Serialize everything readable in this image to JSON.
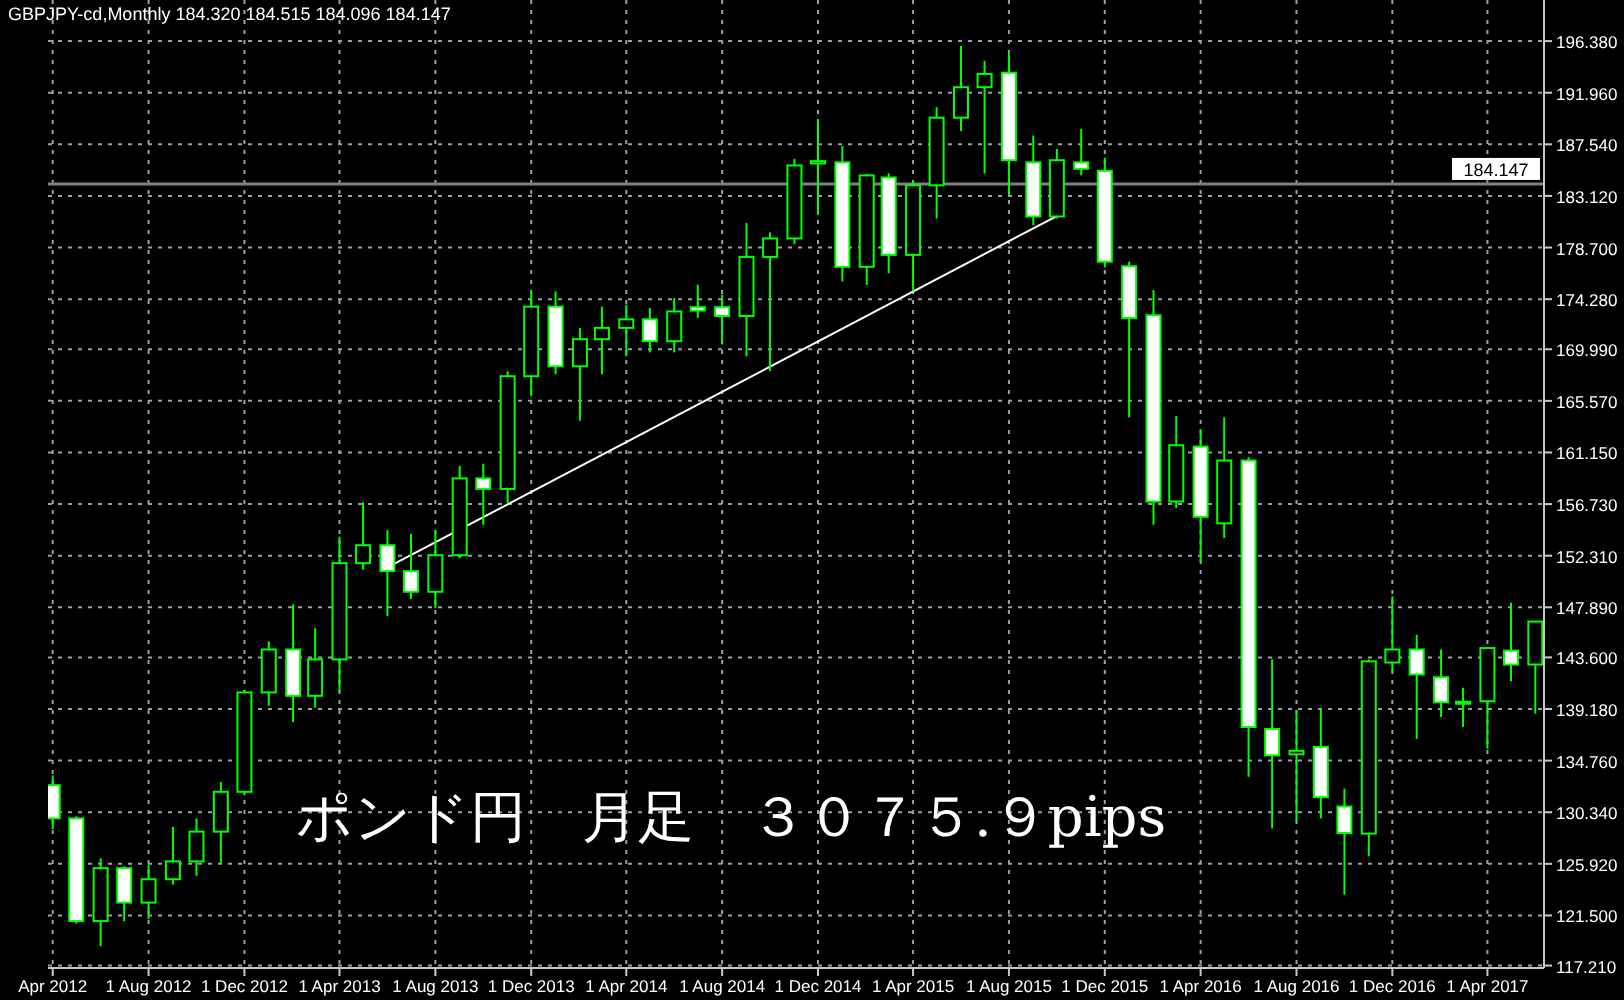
{
  "chart_data": {
    "type": "candlestick",
    "title": "GBPJPY-cd,Monthly 184.320 184.515 184.096 184.147",
    "annotations": [
      "ポンド円　月足　３０７５.９pips"
    ],
    "color": "#00ff00",
    "x": [
      "2012-04",
      "2012-05",
      "2012-06",
      "2012-07",
      "2012-08",
      "2012-09",
      "2012-10",
      "2012-11",
      "2012-12",
      "2013-01",
      "2013-02",
      "2013-03",
      "2013-04",
      "2013-05",
      "2013-06",
      "2013-07",
      "2013-08",
      "2013-09",
      "2013-10",
      "2013-11",
      "2013-12",
      "2014-01",
      "2014-02",
      "2014-03",
      "2014-04",
      "2014-05",
      "2014-06",
      "2014-07",
      "2014-08",
      "2014-09",
      "2014-10",
      "2014-11",
      "2014-12",
      "2015-01",
      "2015-02",
      "2015-03",
      "2015-04",
      "2015-05",
      "2015-06",
      "2015-07",
      "2015-08",
      "2015-09",
      "2015-10",
      "2015-11",
      "2015-12",
      "2016-01",
      "2016-02",
      "2016-03",
      "2016-04",
      "2016-05",
      "2016-06",
      "2016-07",
      "2016-08",
      "2016-09",
      "2016-10",
      "2016-11",
      "2016-12",
      "2017-01",
      "2017-02",
      "2017-03",
      "2017-04",
      "2017-05",
      "2017-06"
    ],
    "ohlc": [
      [
        132.66,
        133.5,
        128.9,
        129.81
      ],
      [
        129.81,
        130.0,
        120.8,
        121.02
      ],
      [
        121.02,
        126.4,
        118.86,
        125.55
      ],
      [
        125.55,
        125.7,
        121.0,
        122.6
      ],
      [
        122.6,
        125.84,
        121.19,
        124.6
      ],
      [
        124.6,
        129.08,
        124.14,
        126.13
      ],
      [
        126.13,
        129.8,
        124.9,
        128.68
      ],
      [
        128.68,
        132.94,
        126.0,
        132.09
      ],
      [
        132.09,
        140.8,
        131.8,
        140.6
      ],
      [
        140.6,
        144.97,
        139.46,
        144.28
      ],
      [
        144.28,
        148.15,
        138.05,
        140.31
      ],
      [
        140.31,
        146.1,
        139.3,
        143.43
      ],
      [
        143.43,
        153.94,
        140.6,
        151.67
      ],
      [
        151.67,
        156.89,
        151.1,
        153.21
      ],
      [
        153.21,
        154.5,
        147.13,
        150.99
      ],
      [
        150.99,
        154.2,
        148.6,
        149.22
      ],
      [
        149.22,
        154.5,
        147.8,
        152.35
      ],
      [
        152.35,
        160.0,
        152.1,
        158.93
      ],
      [
        158.93,
        160.19,
        154.96,
        158.03
      ],
      [
        158.03,
        168.1,
        156.8,
        167.68
      ],
      [
        167.68,
        174.94,
        165.98,
        173.64
      ],
      [
        173.64,
        174.94,
        167.85,
        168.53
      ],
      [
        168.53,
        171.82,
        163.87,
        170.85
      ],
      [
        170.85,
        173.64,
        167.85,
        171.82
      ],
      [
        171.82,
        173.81,
        169.39,
        172.55
      ],
      [
        172.55,
        173.52,
        169.72,
        170.68
      ],
      [
        170.68,
        174.38,
        169.72,
        173.23
      ],
      [
        173.6,
        175.52,
        172.67,
        173.3
      ],
      [
        173.6,
        174.66,
        170.41,
        172.84
      ],
      [
        172.84,
        180.8,
        169.39,
        177.9
      ],
      [
        177.9,
        180.0,
        168.13,
        179.48
      ],
      [
        179.48,
        186.3,
        179.0,
        185.73
      ],
      [
        185.9,
        189.7,
        181.48,
        186.1
      ],
      [
        186.0,
        187.4,
        175.79,
        177.05
      ],
      [
        177.05,
        185.0,
        175.5,
        184.88
      ],
      [
        184.7,
        185.05,
        176.5,
        178.07
      ],
      [
        178.07,
        184.3,
        174.94,
        184.03
      ],
      [
        184.03,
        190.72,
        181.19,
        189.82
      ],
      [
        189.82,
        195.95,
        188.68,
        192.43
      ],
      [
        192.43,
        194.69,
        185.05,
        193.57
      ],
      [
        193.67,
        195.37,
        183.18,
        186.18
      ],
      [
        186.0,
        188.29,
        180.6,
        181.36
      ],
      [
        181.36,
        187.15,
        181.19,
        186.18
      ],
      [
        186.0,
        188.85,
        184.88,
        185.44
      ],
      [
        185.27,
        186.4,
        177.0,
        177.49
      ],
      [
        177.1,
        177.5,
        164.16,
        172.67
      ],
      [
        172.9,
        175.06,
        154.96,
        156.95
      ],
      [
        156.95,
        164.28,
        156.37,
        161.77
      ],
      [
        161.65,
        163.14,
        151.78,
        155.64
      ],
      [
        155.08,
        164.16,
        153.82,
        160.46
      ],
      [
        160.46,
        160.75,
        133.38,
        137.64
      ],
      [
        137.47,
        143.43,
        128.96,
        135.21
      ],
      [
        135.3,
        139.07,
        129.53,
        135.6
      ],
      [
        135.94,
        139.18,
        129.81,
        131.63
      ],
      [
        130.83,
        132.36,
        123.28,
        128.56
      ],
      [
        128.51,
        143.43,
        126.57,
        143.26
      ],
      [
        143.16,
        148.83,
        142.31,
        144.28
      ],
      [
        144.28,
        145.54,
        136.62,
        142.14
      ],
      [
        141.9,
        144.28,
        138.49,
        139.75
      ],
      [
        139.7,
        141.0,
        137.64,
        139.8
      ],
      [
        139.85,
        144.4,
        135.77,
        144.4
      ],
      [
        144.18,
        148.27,
        141.56,
        142.99
      ],
      [
        142.99,
        146.67,
        138.78,
        146.67
      ]
    ],
    "series": [
      {
        "type": "line",
        "color": "#ffffff",
        "x": [
          "2013-06",
          "2015-10"
        ],
        "values": [
          151.3,
          181.4
        ]
      }
    ],
    "ref_lines": [
      {
        "axis": "y",
        "value": 184.147,
        "label": "184.147",
        "color": "#808080"
      }
    ],
    "xlim": [
      "2012-03-26",
      "2017-06-12"
    ],
    "xticks": [
      {
        "value": "2012-04-01",
        "label": "Apr 2012"
      },
      {
        "value": "2012-08-01",
        "label": "1 Aug 2012"
      },
      {
        "value": "2012-12-01",
        "label": "1 Dec 2012"
      },
      {
        "value": "2013-04-01",
        "label": "1 Apr 2013"
      },
      {
        "value": "2013-08-01",
        "label": "1 Aug 2013"
      },
      {
        "value": "2013-12-01",
        "label": "1 Dec 2013"
      },
      {
        "value": "2014-04-01",
        "label": "1 Apr 2014"
      },
      {
        "value": "2014-08-01",
        "label": "1 Aug 2014"
      },
      {
        "value": "2014-12-01",
        "label": "1 Dec 2014"
      },
      {
        "value": "2015-04-01",
        "label": "1 Apr 2015"
      },
      {
        "value": "2015-08-01",
        "label": "1 Aug 2015"
      },
      {
        "value": "2015-12-01",
        "label": "1 Dec 2015"
      },
      {
        "value": "2016-04-01",
        "label": "1 Apr 2016"
      },
      {
        "value": "2016-08-01",
        "label": "1 Aug 2016"
      },
      {
        "value": "2016-12-01",
        "label": "1 Dec 2016"
      },
      {
        "value": "2017-04-01",
        "label": "1 Apr 2017"
      }
    ],
    "ylim": [
      117.0,
      199.9
    ],
    "yticks": [
      {
        "value": 196.38,
        "label": "196.380"
      },
      {
        "value": 191.96,
        "label": "191.960"
      },
      {
        "value": 187.54,
        "label": "187.540"
      },
      {
        "value": 183.12,
        "label": "183.120"
      },
      {
        "value": 178.7,
        "label": "178.700"
      },
      {
        "value": 174.28,
        "label": "174.280"
      },
      {
        "value": 169.99,
        "label": "169.990"
      },
      {
        "value": 165.57,
        "label": "165.570"
      },
      {
        "value": 161.15,
        "label": "161.150"
      },
      {
        "value": 156.73,
        "label": "156.730"
      },
      {
        "value": 152.31,
        "label": "152.310"
      },
      {
        "value": 147.89,
        "label": "147.890"
      },
      {
        "value": 143.6,
        "label": "143.600"
      },
      {
        "value": 139.18,
        "label": "139.180"
      },
      {
        "value": 134.76,
        "label": "134.760"
      },
      {
        "value": 130.34,
        "label": "130.340"
      },
      {
        "value": 125.92,
        "label": "125.920"
      },
      {
        "value": 121.5,
        "label": "121.500"
      },
      {
        "value": 117.21,
        "label": "117.210"
      }
    ],
    "grid": true
  }
}
